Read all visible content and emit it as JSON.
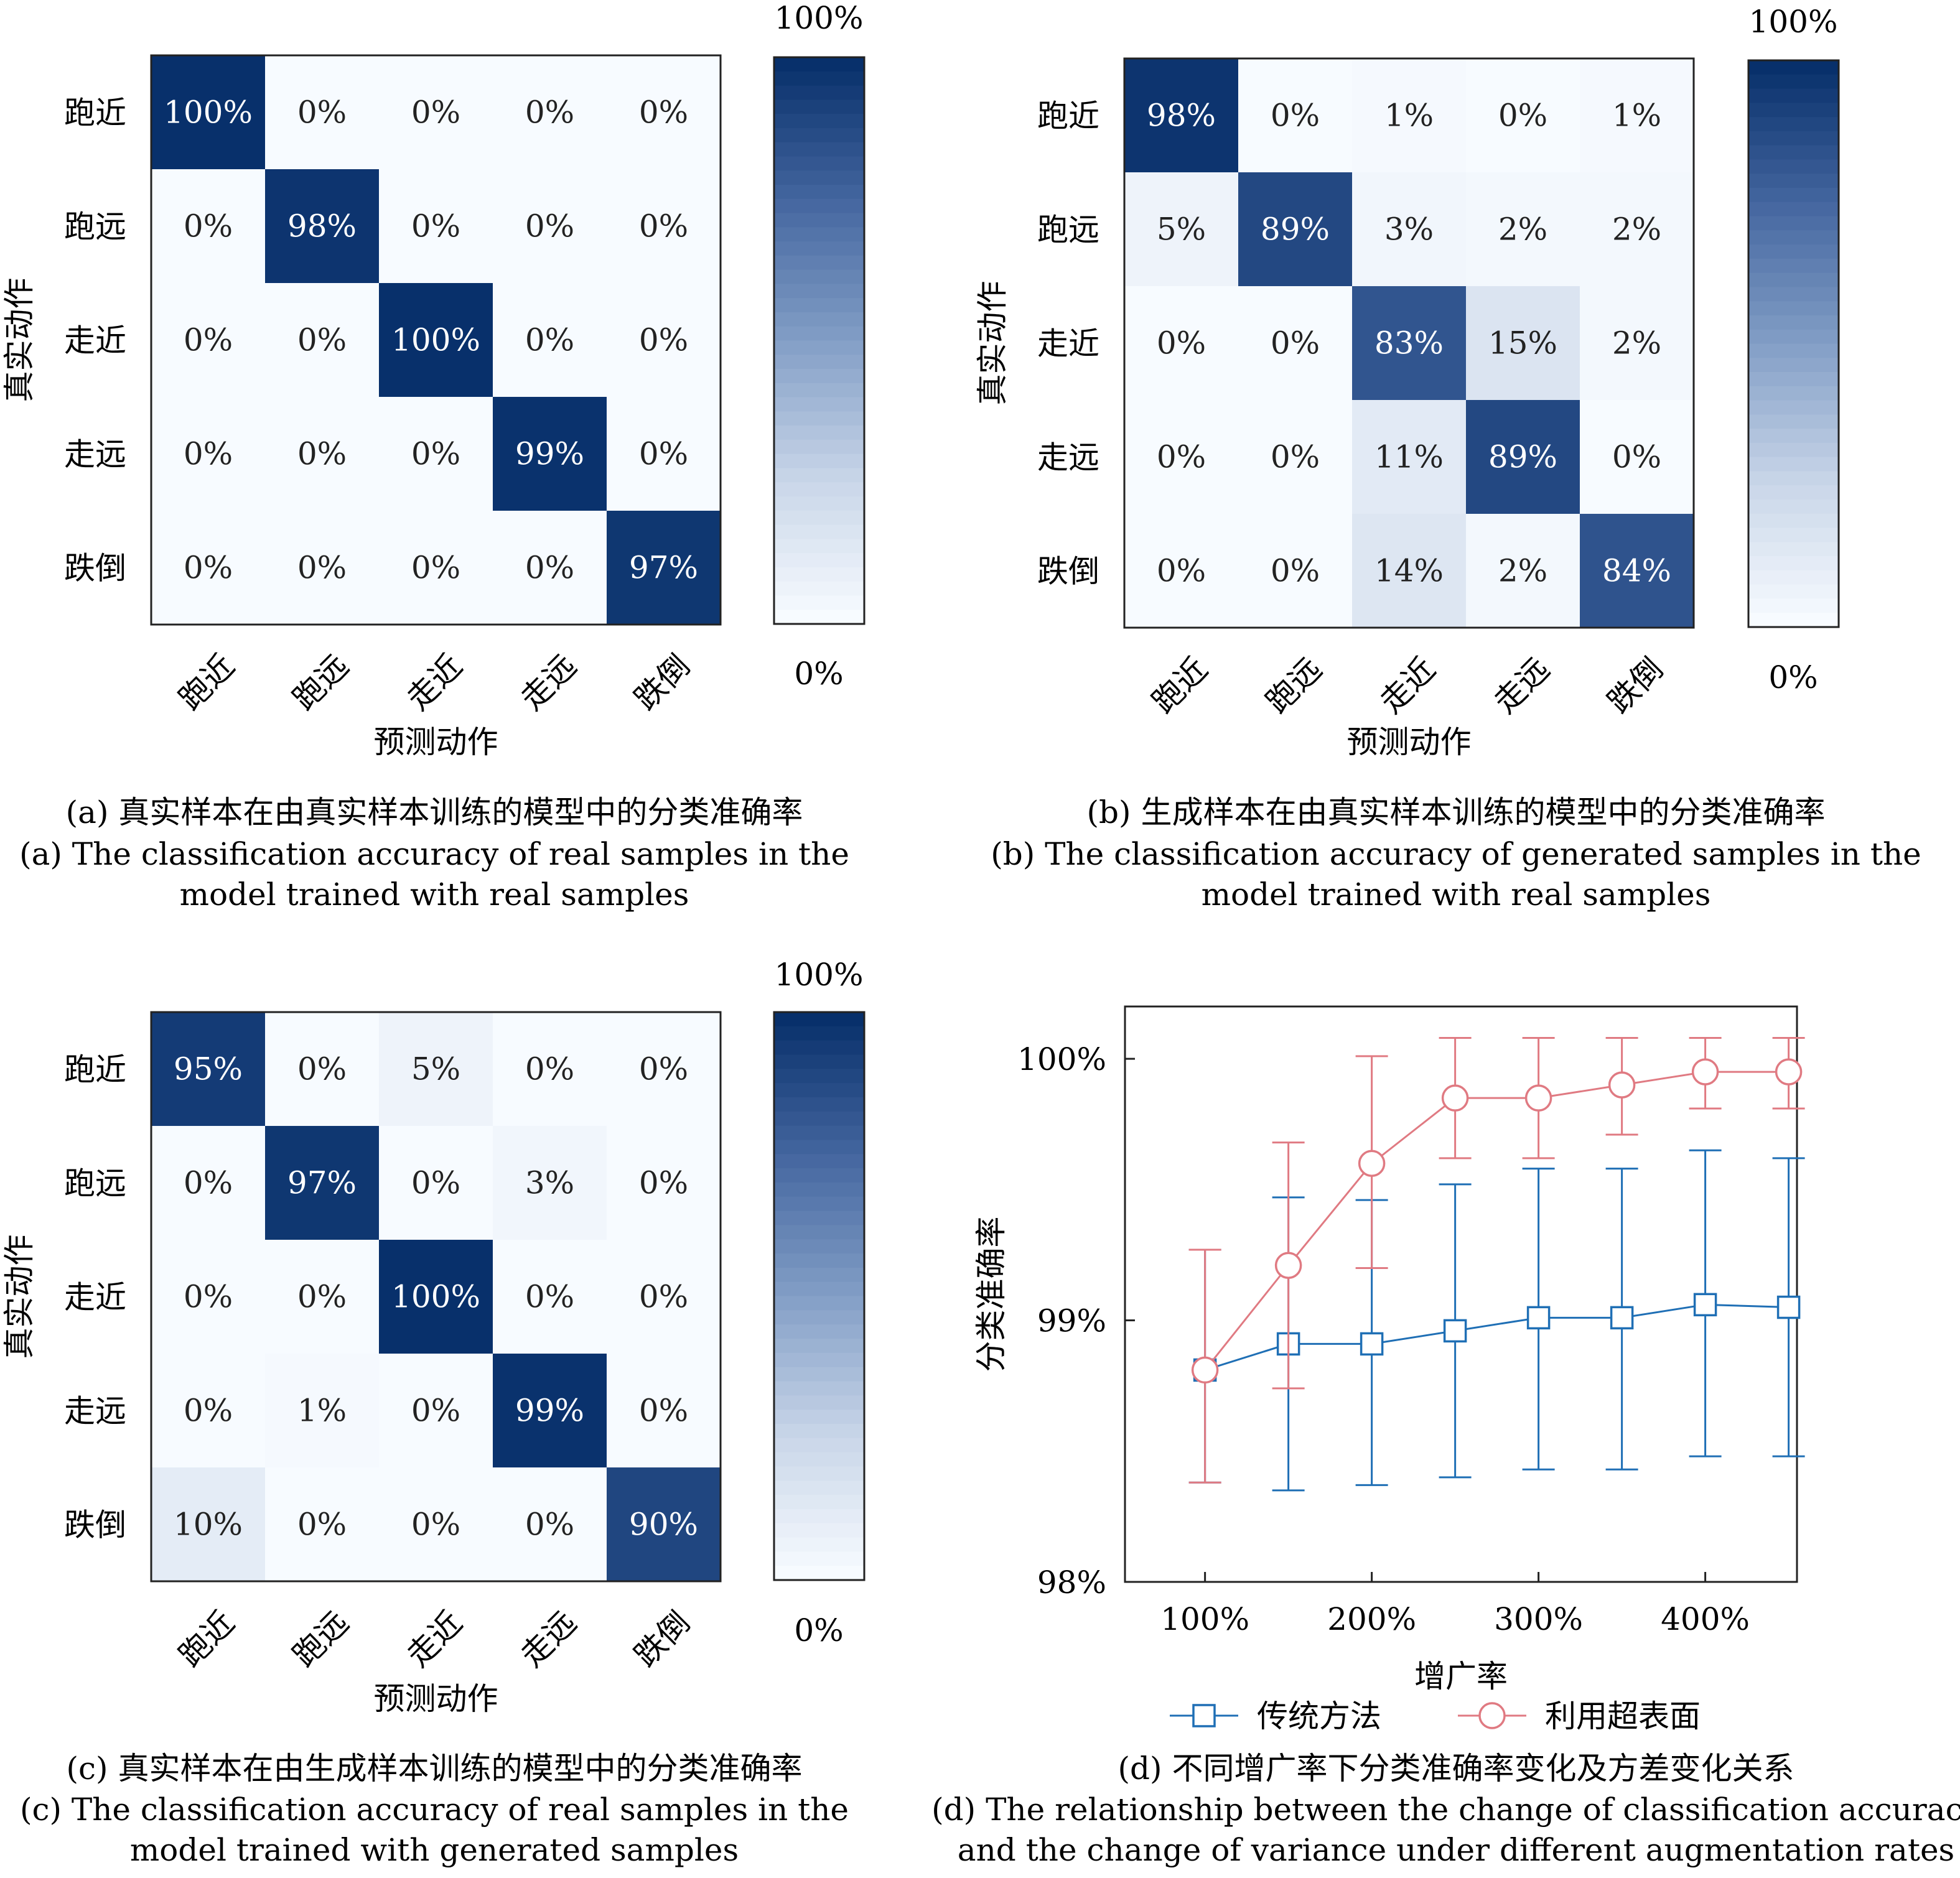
{
  "chart_data": [
    {
      "type": "heatmap",
      "categories": [
        "跑近",
        "跑远",
        "走近",
        "走远",
        "跌倒"
      ],
      "values": [
        [
          100,
          0,
          0,
          0,
          0
        ],
        [
          0,
          98,
          0,
          0,
          0
        ],
        [
          0,
          0,
          100,
          0,
          0
        ],
        [
          0,
          0,
          0,
          99,
          0
        ],
        [
          0,
          0,
          0,
          0,
          97
        ]
      ],
      "xlabel": "预测动作",
      "ylabel": "真实动作",
      "colorbar": {
        "max_label": "100%",
        "min_label": "0%"
      },
      "caption_cn": "(a) 真实样本在由真实样本训练的模型中的分类准确率",
      "caption_en": [
        "(a) The classification accuracy of real samples in the",
        "model trained with real samples"
      ]
    },
    {
      "type": "heatmap",
      "categories": [
        "跑近",
        "跑远",
        "走近",
        "走远",
        "跌倒"
      ],
      "values": [
        [
          98,
          0,
          1,
          0,
          1
        ],
        [
          5,
          89,
          3,
          2,
          2
        ],
        [
          0,
          0,
          83,
          15,
          2
        ],
        [
          0,
          0,
          11,
          89,
          0
        ],
        [
          0,
          0,
          14,
          2,
          84
        ]
      ],
      "xlabel": "预测动作",
      "ylabel": "真实动作",
      "colorbar": {
        "max_label": "100%",
        "min_label": "0%"
      },
      "caption_cn": "(b) 生成样本在由真实样本训练的模型中的分类准确率",
      "caption_en": [
        "(b) The classification accuracy of generated samples in the",
        "model trained with real samples"
      ]
    },
    {
      "type": "heatmap",
      "categories": [
        "跑近",
        "跑远",
        "走近",
        "走远",
        "跌倒"
      ],
      "values": [
        [
          95,
          0,
          5,
          0,
          0
        ],
        [
          0,
          97,
          0,
          3,
          0
        ],
        [
          0,
          0,
          100,
          0,
          0
        ],
        [
          0,
          1,
          0,
          99,
          0
        ],
        [
          10,
          0,
          0,
          0,
          90
        ]
      ],
      "xlabel": "预测动作",
      "ylabel": "真实动作",
      "colorbar": {
        "max_label": "100%",
        "min_label": "0%"
      },
      "caption_cn": "(c) 真实样本在由生成样本训练的模型中的分类准确率",
      "caption_en": [
        "(c) The classification accuracy of real samples in the",
        "model trained with generated samples"
      ]
    },
    {
      "type": "line",
      "x": [
        100,
        150,
        200,
        250,
        300,
        350,
        400,
        450
      ],
      "xticks": [
        100,
        200,
        300,
        400
      ],
      "xtick_labels": [
        "100%",
        "200%",
        "300%",
        "400%"
      ],
      "xlim": [
        52,
        455
      ],
      "yticks": [
        98,
        99,
        100
      ],
      "ytick_labels": [
        "98%",
        "99%",
        "100%"
      ],
      "ylim": [
        98,
        100.2
      ],
      "xlabel": "增广率",
      "ylabel": "分类准确率",
      "series": [
        {
          "name": "传统方法",
          "color": "#1f6fb5",
          "marker": "square",
          "values": [
            98.81,
            98.91,
            98.91,
            98.96,
            99.01,
            99.01,
            99.06,
            99.05
          ],
          "err_low": [
            98.38,
            98.35,
            98.37,
            98.4,
            98.43,
            98.43,
            98.48,
            98.48
          ],
          "err_high": [
            99.27,
            99.47,
            99.46,
            99.52,
            99.58,
            99.58,
            99.65,
            99.62
          ]
        },
        {
          "name": "利用超表面",
          "color": "#e07a82",
          "marker": "circle",
          "values": [
            98.81,
            99.21,
            99.6,
            99.85,
            99.85,
            99.9,
            99.95,
            99.95
          ],
          "err_low": [
            98.38,
            98.74,
            99.2,
            99.62,
            99.62,
            99.71,
            99.81,
            99.81
          ],
          "err_high": [
            99.27,
            99.68,
            100.01,
            100.08,
            100.08,
            100.08,
            100.08,
            100.08
          ]
        }
      ],
      "caption_cn": "(d) 不同增广率下分类准确率变化及方差变化关系",
      "caption_en": [
        "(d) The relationship between the change of classification accuracy",
        "and the change of variance under different augmentation rates"
      ]
    }
  ]
}
